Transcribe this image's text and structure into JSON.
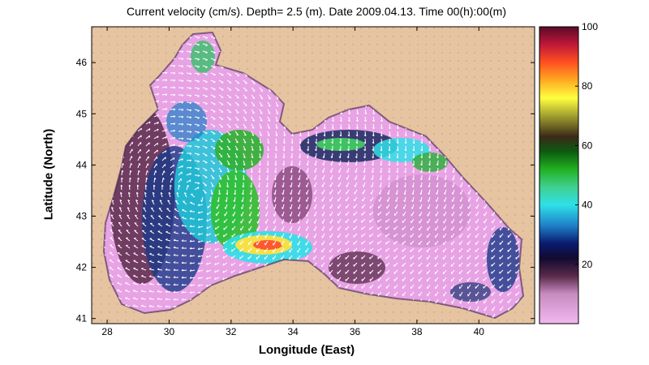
{
  "title": "Current velocity (cm/s). Depth=  2.5 (m). Date 2009.04.13. Time 00(h):00(m)",
  "axes": {
    "xlabel": "Longitude (East)",
    "ylabel": "Latitude (North)",
    "x_ticks": [
      "28",
      "30",
      "32",
      "34",
      "36",
      "38",
      "40"
    ],
    "y_ticks": [
      "41",
      "42",
      "43",
      "44",
      "45",
      "46"
    ],
    "xlim": [
      27.5,
      41.8
    ],
    "ylim": [
      40.9,
      46.7
    ]
  },
  "colorbar": {
    "ticks": [
      "20",
      "40",
      "60",
      "80",
      "100"
    ],
    "range": [
      0,
      100
    ],
    "units": "cm/s"
  },
  "colors": {
    "land": "#e6c4a1",
    "water_low": "#e8a3e5",
    "arrows": "#ffffff"
  }
}
